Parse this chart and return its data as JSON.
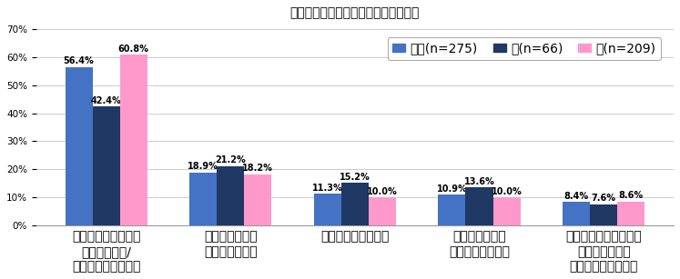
{
  "title": "図９：配偶者の取り組みに不満な理由",
  "categories": [
    "大掃除に積極的では\nなかったので/\n参加しなかったので",
    "担当した箇所が\n少なかったので",
    "手際が悪かったので",
    "きちんと汚れが\n落ちなかったので",
    "他の家族よりも掃除が\n簡単な場所しか\n担当しなかったので"
  ],
  "series": {
    "全体(n=275)": [
      56.4,
      18.9,
      11.3,
      10.9,
      8.4
    ],
    "夫(n=66)": [
      42.4,
      21.2,
      15.2,
      13.6,
      7.6
    ],
    "妻(n=209)": [
      60.8,
      18.2,
      10.0,
      10.0,
      8.6
    ]
  },
  "colors": {
    "全体(n=275)": "#4472C4",
    "夫(n=66)": "#1F3864",
    "妻(n=209)": "#FF99CC"
  },
  "ylim": [
    0,
    70
  ],
  "yticks": [
    0,
    10,
    20,
    30,
    40,
    50,
    60,
    70
  ],
  "bar_width": 0.22,
  "legend_labels": [
    "全体(n=275)",
    "夫(n=66)",
    "妻(n=209)"
  ],
  "label_fontsize": 7.0,
  "title_fontsize": 11,
  "tick_fontsize": 7.5,
  "legend_fontsize": 8.5,
  "background_color": "#FFFFFF",
  "grid_color": "#CCCCCC"
}
